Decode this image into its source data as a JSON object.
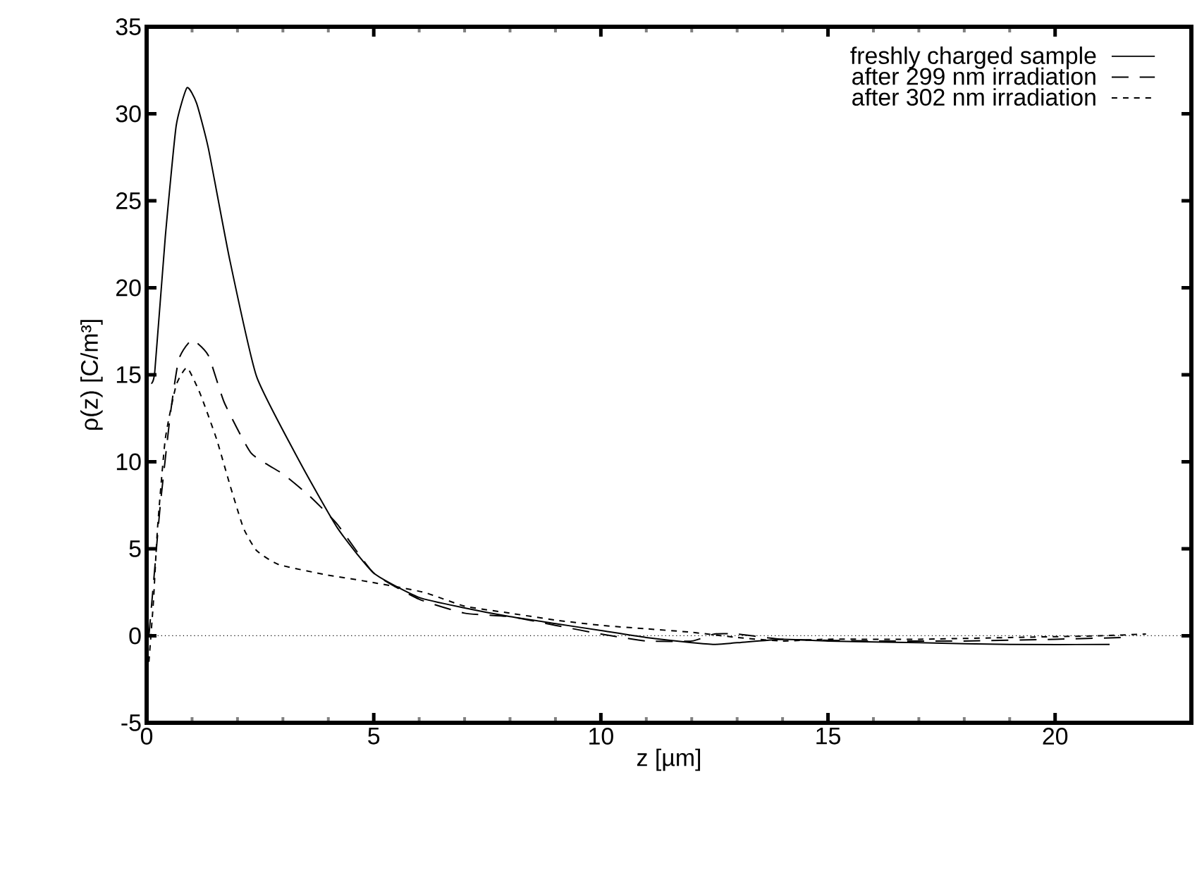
{
  "chart_data": {
    "type": "line",
    "xlabel": "z [µm]",
    "ylabel": "ρ(z) [C/m³]",
    "xlim": [
      0,
      23
    ],
    "ylim": [
      -5,
      35
    ],
    "xticks": [
      0,
      5,
      10,
      15,
      20
    ],
    "yticks": [
      -5,
      0,
      5,
      10,
      15,
      20,
      25,
      30,
      35
    ],
    "grid": false,
    "legend": "top right",
    "marker": "none",
    "ref_lines": [
      {
        "axis": "y",
        "value": 0,
        "line_style": "dotted",
        "color": "#000000"
      }
    ],
    "series": [
      {
        "name": "freshly charged sample",
        "color": "#000000",
        "line_style": "solid",
        "x": [
          0.1,
          0.18,
          0.41,
          0.65,
          0.89,
          1.1,
          1.36,
          1.83,
          2.42,
          3.37,
          4.2,
          5.0,
          6.0,
          7.0,
          8.0,
          9.0,
          10.0,
          11.0,
          12.0,
          12.5,
          13.0,
          14.0,
          15.0,
          17.0,
          19.0,
          21.2
        ],
        "values": [
          14.5,
          15.2,
          22.9,
          29.3,
          31.5,
          30.6,
          28.0,
          21.6,
          14.9,
          10.0,
          6.2,
          3.6,
          2.2,
          1.6,
          1.1,
          0.7,
          0.3,
          -0.1,
          -0.4,
          -0.5,
          -0.4,
          -0.2,
          -0.3,
          -0.4,
          -0.5,
          -0.5
        ]
      },
      {
        "name": "after 299 nm irradiation",
        "color": "#000000",
        "line_style": "dashed",
        "x": [
          0.05,
          0.15,
          0.3,
          0.53,
          0.71,
          1.0,
          1.36,
          1.71,
          2.3,
          3.0,
          3.6,
          4.2,
          5.0,
          6.0,
          7.0,
          8.0,
          9.0,
          10.0,
          11.0,
          12.0,
          12.5,
          13.0,
          14.0,
          16.0,
          18.0,
          20.0,
          21.5
        ],
        "values": [
          0.0,
          3.0,
          7.5,
          12.9,
          15.9,
          17.0,
          16.1,
          13.4,
          10.5,
          9.3,
          8.0,
          6.4,
          3.6,
          2.1,
          1.3,
          1.1,
          0.6,
          0.1,
          -0.3,
          -0.3,
          0.1,
          0.1,
          -0.2,
          -0.3,
          -0.3,
          -0.2,
          -0.1
        ]
      },
      {
        "name": "after 302 nm irradiation",
        "color": "#000000",
        "line_style": "dotted",
        "x": [
          0.05,
          0.15,
          0.24,
          0.41,
          0.65,
          0.89,
          1.18,
          1.54,
          1.83,
          2.13,
          2.42,
          2.9,
          3.96,
          4.9,
          6.1,
          7.0,
          8.0,
          9.0,
          10.0,
          11.0,
          12.0,
          13.0,
          14.0,
          15.0,
          17.0,
          19.0,
          21.0,
          22.0
        ],
        "values": [
          -1.5,
          2.0,
          6.2,
          11.3,
          14.4,
          15.4,
          13.9,
          11.3,
          8.7,
          6.2,
          4.9,
          4.1,
          3.5,
          3.1,
          2.5,
          1.7,
          1.3,
          0.9,
          0.6,
          0.4,
          0.2,
          -0.1,
          -0.3,
          -0.2,
          -0.2,
          -0.1,
          0.0,
          0.1
        ]
      }
    ]
  }
}
